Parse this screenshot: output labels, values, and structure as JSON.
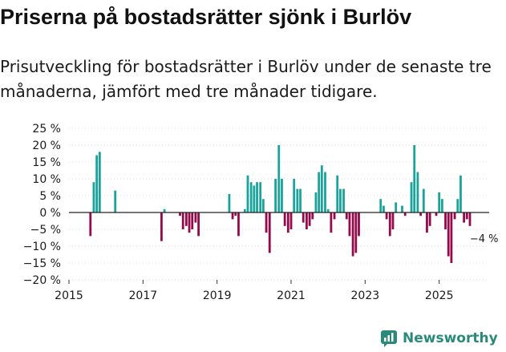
{
  "header": {
    "title": "Priserna på bostadsrätter sjönk i Burlöv",
    "subtitle": "Prisutveckling för bostadsrätter i Burlöv under de senaste tre månaderna, jämfört med tre månader tidigare."
  },
  "brand": {
    "name": "Newsworthy",
    "icon": "newsworthy-logo-icon",
    "color": "#2a8a7a"
  },
  "colors": {
    "positive": "#1aa39a",
    "negative": "#950a4a",
    "zero_line": "#222222"
  },
  "chart_data": {
    "type": "bar",
    "title": "",
    "xlabel": "",
    "ylabel": "",
    "ylim": [
      -20,
      25
    ],
    "yticks": [
      25,
      20,
      15,
      10,
      5,
      0,
      -5,
      -10,
      -15,
      -20
    ],
    "ytick_labels": [
      "25 %",
      "20 %",
      "15 %",
      "10 %",
      "5 %",
      "0 %",
      "−5 %",
      "−10 %",
      "−15 %",
      "−20 %"
    ],
    "xticks": [
      2015,
      2017,
      2019,
      2021,
      2023,
      2025
    ],
    "xtick_labels": [
      "2015",
      "2017",
      "2019",
      "2021",
      "2023",
      "2025"
    ],
    "x_unit": "year",
    "grid": true,
    "annotation": {
      "text": "−4 %",
      "x": 2026.0,
      "y": -4
    },
    "x": [
      2015.58,
      2015.67,
      2015.75,
      2015.83,
      2016.25,
      2017.5,
      2017.58,
      2018.0,
      2018.08,
      2018.17,
      2018.25,
      2018.33,
      2018.42,
      2018.5,
      2019.33,
      2019.42,
      2019.5,
      2019.58,
      2019.75,
      2019.83,
      2019.92,
      2020.0,
      2020.08,
      2020.17,
      2020.25,
      2020.33,
      2020.42,
      2020.58,
      2020.67,
      2020.75,
      2020.83,
      2020.92,
      2021.0,
      2021.08,
      2021.17,
      2021.25,
      2021.33,
      2021.42,
      2021.5,
      2021.58,
      2021.67,
      2021.75,
      2021.83,
      2021.92,
      2022.0,
      2022.08,
      2022.17,
      2022.25,
      2022.33,
      2022.42,
      2022.5,
      2022.58,
      2022.67,
      2022.75,
      2022.83,
      2023.42,
      2023.5,
      2023.58,
      2023.67,
      2023.75,
      2023.83,
      2024.0,
      2024.08,
      2024.25,
      2024.33,
      2024.42,
      2024.5,
      2024.58,
      2024.67,
      2024.75,
      2024.92,
      2025.0,
      2025.08,
      2025.17,
      2025.25,
      2025.33,
      2025.42,
      2025.5,
      2025.58,
      2025.67,
      2025.75,
      2025.83
    ],
    "values": [
      -7,
      9,
      17,
      18,
      6.5,
      -8.5,
      1,
      -1,
      -5,
      -4,
      -6,
      -5,
      -3,
      -7,
      5.5,
      -2,
      -1,
      -7,
      1,
      11,
      9,
      8,
      9,
      9,
      4,
      -6,
      -12,
      10,
      20,
      10,
      -4,
      -6,
      -5,
      10,
      7,
      7,
      -3,
      -5,
      -4,
      -2,
      6,
      12,
      14,
      12,
      1,
      -6,
      -2,
      11,
      7,
      7,
      -2,
      -7,
      -13,
      -12,
      -7,
      4,
      2,
      -2,
      -7,
      -5,
      3,
      2,
      -1,
      9,
      20,
      12,
      -1,
      7,
      -6,
      -4,
      -1,
      6,
      4,
      -5,
      -13,
      -15,
      -2,
      4,
      11,
      -3,
      -2,
      -4
    ]
  }
}
